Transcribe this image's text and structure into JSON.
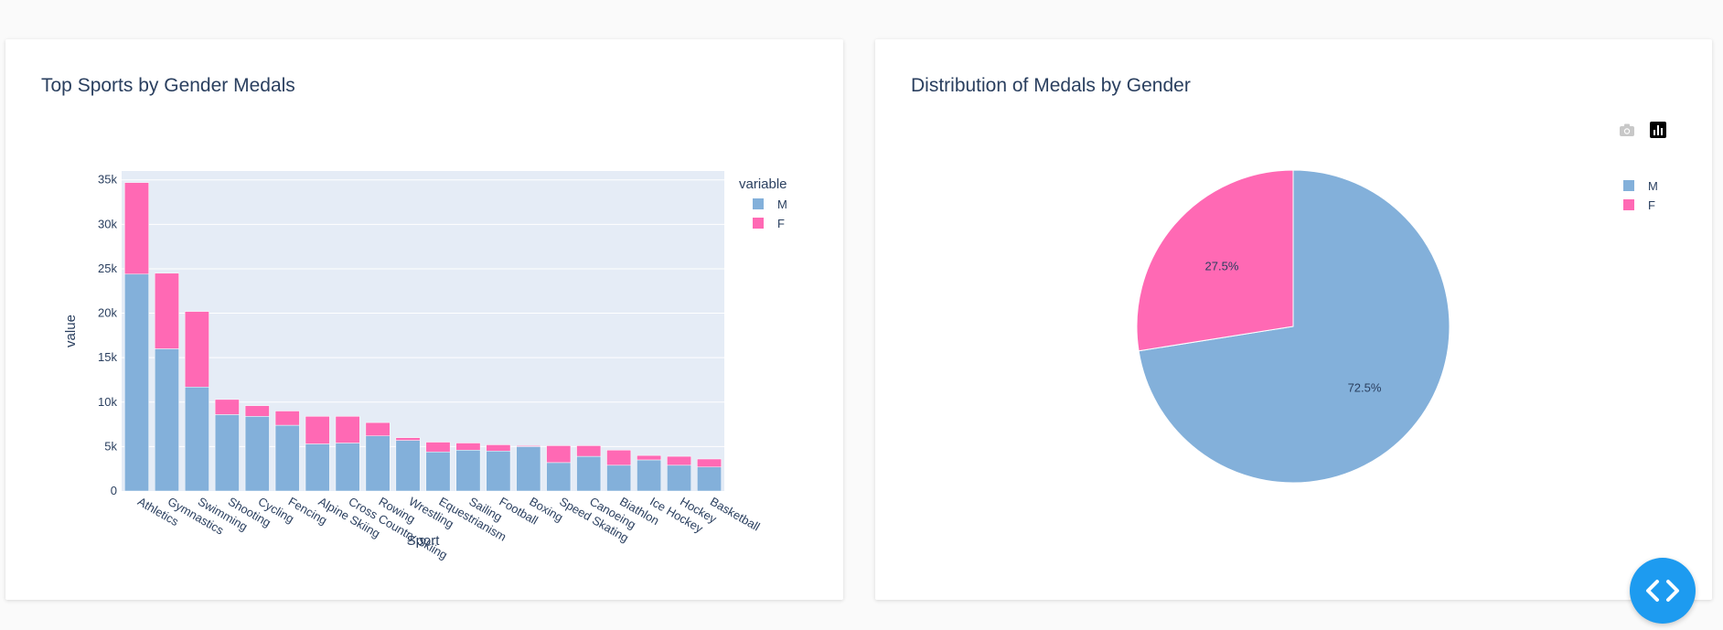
{
  "left_card": {
    "title": "Top Sports by Gender Medals"
  },
  "right_card": {
    "title": "Distribution of Medals by Gender"
  },
  "colors": {
    "M": "#83b0da",
    "F": "#ff69b4",
    "plot_bg": "#e5ecf6",
    "text": "#2a3f5f",
    "fab": "#1d9bf0"
  },
  "icons": {
    "camera": "camera-icon",
    "chart": "bar-chart-icon",
    "code": "code-icon"
  },
  "chart_data": [
    {
      "type": "bar",
      "barmode": "stack",
      "title": "Top Sports by Gender Medals",
      "xlabel": "Sport",
      "ylabel": "value",
      "ylim": [
        0,
        36000
      ],
      "yticks": [
        0,
        5000,
        10000,
        15000,
        20000,
        25000,
        30000,
        35000
      ],
      "ytick_labels": [
        "0",
        "5k",
        "10k",
        "15k",
        "20k",
        "25k",
        "30k",
        "35k"
      ],
      "categories": [
        "Athletics",
        "Gymnastics",
        "Swimming",
        "Shooting",
        "Cycling",
        "Fencing",
        "Alpine Skiing",
        "Cross Country Skiing",
        "Rowing",
        "Wrestling",
        "Equestrianism",
        "Sailing",
        "Football",
        "Boxing",
        "Speed Skating",
        "Canoeing",
        "Biathlon",
        "Ice Hockey",
        "Hockey",
        "Basketball"
      ],
      "legend_title": "variable",
      "legend_position": "top-right",
      "series": [
        {
          "name": "M",
          "values": [
            24400,
            16000,
            11700,
            8600,
            8400,
            7400,
            5300,
            5400,
            6200,
            5700,
            4400,
            4600,
            4500,
            5000,
            3200,
            3900,
            2900,
            3500,
            2900,
            2700
          ]
        },
        {
          "name": "F",
          "values": [
            10300,
            8500,
            8500,
            1700,
            1200,
            1600,
            3100,
            3000,
            1500,
            300,
            1100,
            800,
            700,
            100,
            1900,
            1200,
            1700,
            500,
            1000,
            900
          ]
        }
      ]
    },
    {
      "type": "pie",
      "title": "Distribution of Medals by Gender",
      "labels": [
        "M",
        "F"
      ],
      "values": [
        72.5,
        27.5
      ],
      "text_labels": [
        "72.5%",
        "27.5%"
      ],
      "legend_position": "top-right"
    }
  ]
}
